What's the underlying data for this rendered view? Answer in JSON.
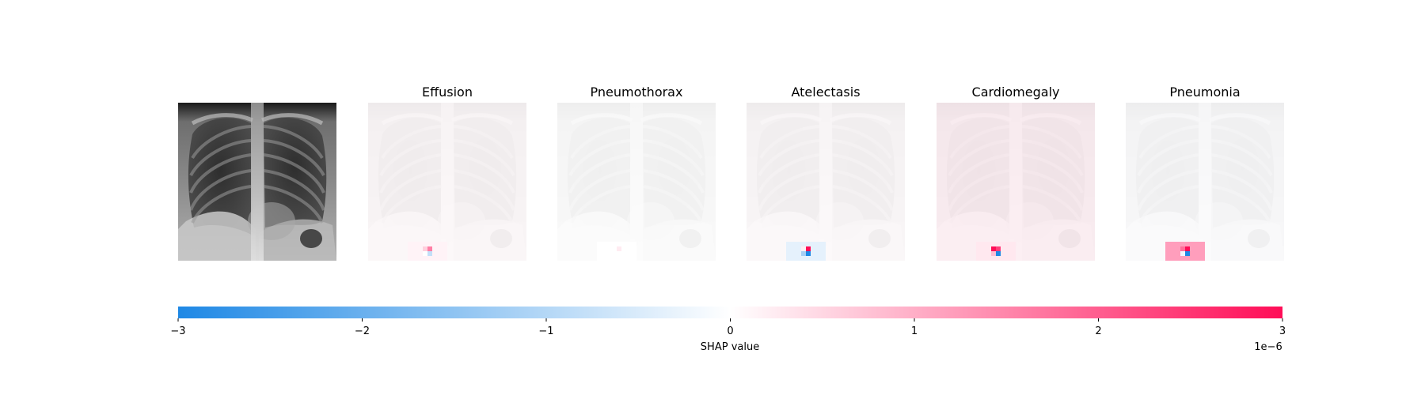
{
  "colors": {
    "negative": "#1e88e5",
    "neutral": "#ffffff",
    "positive": "#ff0d57"
  },
  "chart_data": {
    "type": "heatmap",
    "panels": [
      {
        "title": "",
        "kind": "input_image"
      },
      {
        "title": "Effusion",
        "overlay": 0.1,
        "block": 0.15,
        "pix": [
          1.6,
          0.6,
          0.0,
          -0.8
        ]
      },
      {
        "title": "Pneumothorax",
        "overlay": 0.0,
        "block": 0.0,
        "pix": [
          0.25,
          0.0,
          0.0,
          0.0
        ]
      },
      {
        "title": "Atelectasis",
        "overlay": 0.06,
        "block": -0.35,
        "pix": [
          3.0,
          0.2,
          -1.2,
          -3.0
        ]
      },
      {
        "title": "Cardiomegaly",
        "overlay": 0.28,
        "block": 0.28,
        "pix": [
          2.4,
          3.0,
          0.8,
          -3.0
        ]
      },
      {
        "title": "Pneumonia",
        "overlay": -0.02,
        "block": 1.2,
        "pix": [
          3.0,
          1.8,
          -0.2,
          -3.0
        ]
      }
    ],
    "colorbar": {
      "ticks": [
        -3,
        -2,
        -1,
        0,
        1,
        2,
        3
      ],
      "tick_labels": [
        "−3",
        "−2",
        "−1",
        "0",
        "1",
        "2",
        "3"
      ],
      "range": [
        -3,
        3
      ],
      "xlabel": "SHAP value",
      "offset_text": "1e−6"
    }
  }
}
